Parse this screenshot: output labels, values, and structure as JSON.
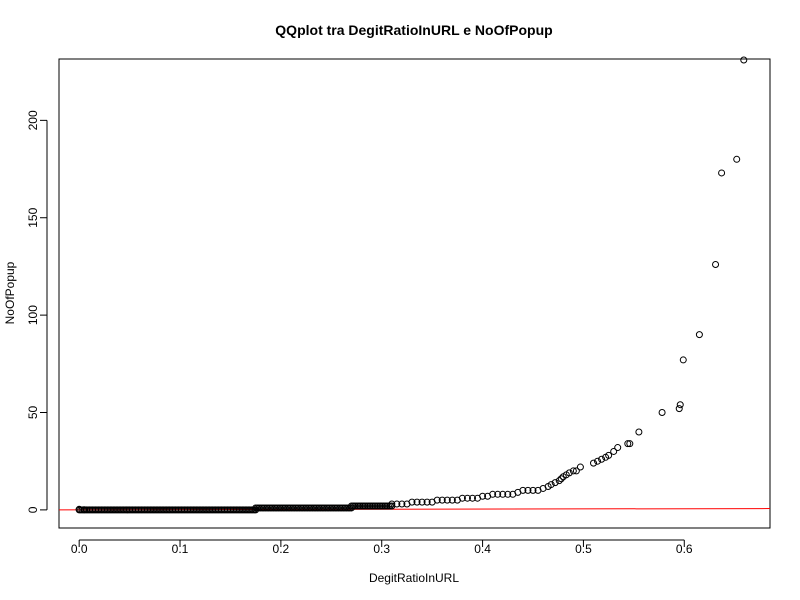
{
  "chart_data": {
    "type": "scatter",
    "title": "QQplot tra DegitRatioInURL e NoOfPopup",
    "xlabel": "DegitRatioInURL",
    "ylabel": "NoOfPopup",
    "xlim": [
      -0.02,
      0.685
    ],
    "ylim": [
      -9.3,
      231.5
    ],
    "xticks": [
      0.0,
      0.1,
      0.2,
      0.3,
      0.4,
      0.5,
      0.6
    ],
    "xtick_labels": [
      "0.0",
      "0.1",
      "0.2",
      "0.3",
      "0.4",
      "0.5",
      "0.6"
    ],
    "yticks": [
      0,
      50,
      100,
      150,
      200
    ],
    "ytick_labels": [
      "0",
      "50",
      "100",
      "150",
      "200"
    ],
    "grid": false,
    "marker": "open-circle",
    "reference_line": {
      "intercept": 0,
      "slope": 1,
      "color": "#ff0000"
    },
    "series_segments": [
      {
        "x_from": 0.0,
        "x_to": 0.175,
        "y": 0,
        "count": 120
      },
      {
        "x_from": 0.175,
        "x_to": 0.27,
        "y": 1,
        "count": 60
      },
      {
        "x_from": 0.27,
        "x_to": 0.31,
        "y": 2,
        "count": 25
      }
    ],
    "points": [
      [
        0.0,
        0.3
      ],
      [
        0.005,
        0.1
      ],
      [
        0.31,
        3
      ],
      [
        0.315,
        3
      ],
      [
        0.32,
        3
      ],
      [
        0.325,
        3
      ],
      [
        0.33,
        4
      ],
      [
        0.335,
        4
      ],
      [
        0.34,
        4
      ],
      [
        0.345,
        4
      ],
      [
        0.35,
        4
      ],
      [
        0.355,
        5
      ],
      [
        0.36,
        5
      ],
      [
        0.365,
        5
      ],
      [
        0.37,
        5
      ],
      [
        0.375,
        5
      ],
      [
        0.38,
        6
      ],
      [
        0.385,
        6
      ],
      [
        0.39,
        6
      ],
      [
        0.395,
        6
      ],
      [
        0.4,
        7
      ],
      [
        0.405,
        7
      ],
      [
        0.41,
        8
      ],
      [
        0.415,
        8
      ],
      [
        0.42,
        8
      ],
      [
        0.425,
        8
      ],
      [
        0.43,
        8
      ],
      [
        0.435,
        9
      ],
      [
        0.44,
        10
      ],
      [
        0.445,
        10
      ],
      [
        0.45,
        10
      ],
      [
        0.455,
        10
      ],
      [
        0.46,
        11
      ],
      [
        0.465,
        12
      ],
      [
        0.468,
        13
      ],
      [
        0.472,
        14
      ],
      [
        0.476,
        15
      ],
      [
        0.478,
        16
      ],
      [
        0.48,
        17
      ],
      [
        0.483,
        18
      ],
      [
        0.486,
        19
      ],
      [
        0.49,
        20
      ],
      [
        0.493,
        20
      ],
      [
        0.497,
        22
      ],
      [
        0.51,
        24
      ],
      [
        0.514,
        25
      ],
      [
        0.518,
        26
      ],
      [
        0.522,
        27
      ],
      [
        0.525,
        28
      ],
      [
        0.53,
        30
      ],
      [
        0.534,
        32
      ],
      [
        0.544,
        34
      ],
      [
        0.546,
        34
      ],
      [
        0.555,
        40
      ],
      [
        0.578,
        50
      ],
      [
        0.595,
        52
      ],
      [
        0.596,
        54
      ],
      [
        0.599,
        77
      ],
      [
        0.615,
        90
      ],
      [
        0.631,
        126
      ],
      [
        0.637,
        173
      ],
      [
        0.652,
        180
      ],
      [
        0.659,
        231
      ]
    ]
  }
}
